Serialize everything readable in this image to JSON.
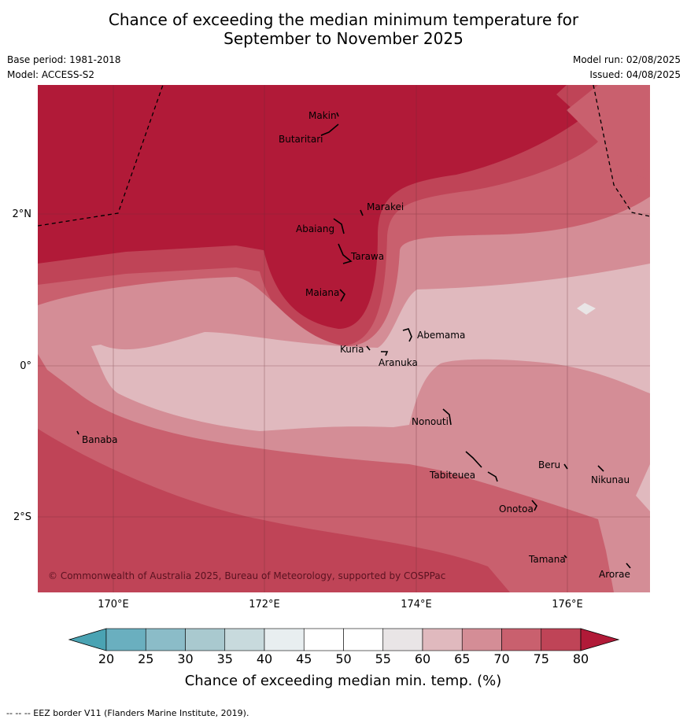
{
  "title_line1": "Chance of exceeding the median minimum temperature for",
  "title_line2": "September to November 2025",
  "base_period": "Base period: 1981-2018",
  "model": "Model: ACCESS-S2",
  "model_run": "Model run: 02/08/2025",
  "issued": "Issued: 04/08/2025",
  "copyright": "© Commonwealth of Australia 2025, Bureau of Meteorology, supported by COSPPac",
  "footer": "--  --  -- EEZ border V11 (Flanders Marine Institute, 2019).",
  "lon_ticks": [
    "170°E",
    "172°E",
    "174°E",
    "176°E"
  ],
  "lat_ticks": [
    "2°N",
    "0°",
    "2°S"
  ],
  "places": [
    "Makin",
    "Butaritari",
    "Marakei",
    "Abaiang",
    "Tarawa",
    "Maiana",
    "Abemama",
    "Kuria",
    "Aranuka",
    "Nonouti",
    "Banaba",
    "Beru",
    "Tabiteuea",
    "Nikunau",
    "Onotoa",
    "Tamana",
    "Arorae"
  ],
  "colorbar": {
    "title": "Chance of exceeding median min. temp. (%)",
    "labels": [
      "20",
      "25",
      "30",
      "35",
      "40",
      "45",
      "50",
      "55",
      "60",
      "65",
      "70",
      "75",
      "80"
    ],
    "colors": [
      "#6aafbf",
      "#8bbcc8",
      "#a9c9cf",
      "#c8dadd",
      "#e8eef0",
      "#ffffff",
      "#ffffff",
      "#e9e5e6",
      "#e0b9be",
      "#d48d96",
      "#c9606e",
      "#bf4457"
    ],
    "low_color": "#4aa3b3",
    "high_color": "#b11a38"
  }
}
